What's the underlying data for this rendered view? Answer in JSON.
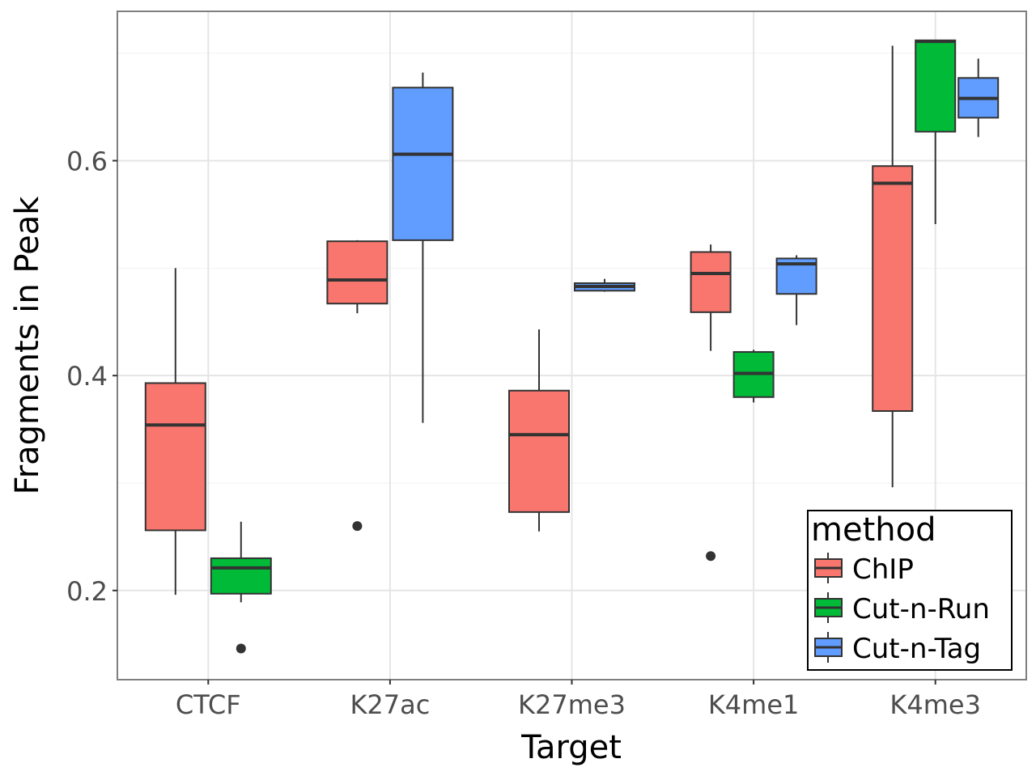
{
  "chart_data": {
    "type": "boxplot",
    "title": "",
    "xlabel": "Target",
    "ylabel": "Fragments in Peak",
    "ylim": [
      0.117,
      0.739
    ],
    "yticks": [
      0.2,
      0.4,
      0.6
    ],
    "ytick_labels": [
      "0.2",
      "0.4",
      "0.6"
    ],
    "grid": true,
    "categories": [
      "CTCF",
      "K27ac",
      "K27me3",
      "K4me1",
      "K4me3"
    ],
    "legend": {
      "title": "method",
      "placement": "bottom-right",
      "entries": [
        {
          "name": "ChIP",
          "color": "#F8766D"
        },
        {
          "name": "Cut-n-Run",
          "color": "#00BA38"
        },
        {
          "name": "Cut-n-Tag",
          "color": "#619CFF"
        }
      ]
    },
    "boxes": [
      {
        "category": "CTCF",
        "method": "ChIP",
        "min": 0.196,
        "q1": 0.256,
        "median": 0.354,
        "q3": 0.393,
        "max": 0.5,
        "outliers": []
      },
      {
        "category": "CTCF",
        "method": "Cut-n-Run",
        "min": 0.189,
        "q1": 0.197,
        "median": 0.221,
        "q3": 0.23,
        "max": 0.264,
        "outliers": [
          0.146
        ]
      },
      {
        "category": "K27ac",
        "method": "ChIP",
        "min": 0.458,
        "q1": 0.467,
        "median": 0.489,
        "q3": 0.525,
        "max": 0.526,
        "outliers": [
          0.26
        ]
      },
      {
        "category": "K27ac",
        "method": "Cut-n-Tag",
        "min": 0.356,
        "q1": 0.526,
        "median": 0.606,
        "q3": 0.668,
        "max": 0.682,
        "outliers": []
      },
      {
        "category": "K27me3",
        "method": "ChIP",
        "min": 0.255,
        "q1": 0.273,
        "median": 0.345,
        "q3": 0.386,
        "max": 0.443,
        "outliers": []
      },
      {
        "category": "K27me3",
        "method": "Cut-n-Tag",
        "min": 0.478,
        "q1": 0.479,
        "median": 0.483,
        "q3": 0.486,
        "max": 0.49,
        "outliers": []
      },
      {
        "category": "K4me1",
        "method": "ChIP",
        "min": 0.423,
        "q1": 0.459,
        "median": 0.495,
        "q3": 0.515,
        "max": 0.522,
        "outliers": [
          0.232
        ]
      },
      {
        "category": "K4me1",
        "method": "Cut-n-Run",
        "min": 0.375,
        "q1": 0.38,
        "median": 0.402,
        "q3": 0.422,
        "max": 0.424,
        "outliers": []
      },
      {
        "category": "K4me1",
        "method": "Cut-n-Tag",
        "min": 0.447,
        "q1": 0.476,
        "median": 0.504,
        "q3": 0.509,
        "max": 0.512,
        "outliers": []
      },
      {
        "category": "K4me3",
        "method": "ChIP",
        "min": 0.296,
        "q1": 0.367,
        "median": 0.579,
        "q3": 0.595,
        "max": 0.707,
        "outliers": []
      },
      {
        "category": "K4me3",
        "method": "Cut-n-Run",
        "min": 0.541,
        "q1": 0.627,
        "median": 0.711,
        "q3": 0.712,
        "max": 0.712,
        "outliers": []
      },
      {
        "category": "K4me3",
        "method": "Cut-n-Tag",
        "min": 0.622,
        "q1": 0.64,
        "median": 0.658,
        "q3": 0.677,
        "max": 0.695,
        "outliers": []
      }
    ]
  }
}
